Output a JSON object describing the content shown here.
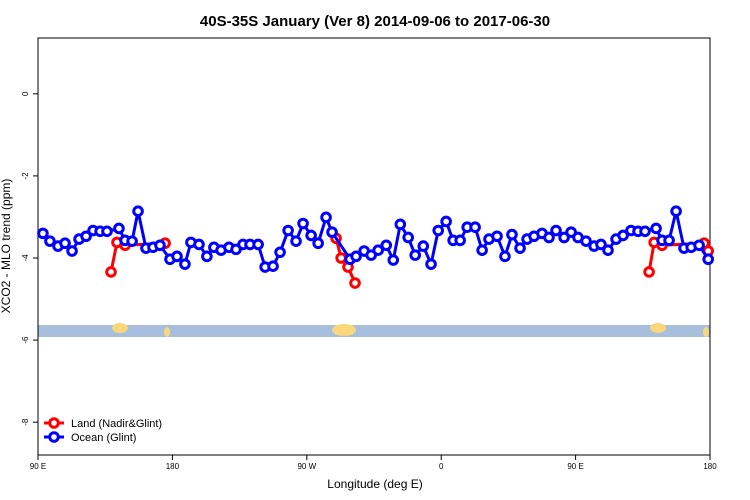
{
  "chart_data": {
    "type": "line",
    "title": "40S-35S January (Ver 8)   2014-09-06 to 2017-06-30",
    "x_label": "Longitude (deg E)",
    "y_label": "XCO2 - MLO trend (ppm)",
    "xlim": [
      90,
      540
    ],
    "xticks": [
      {
        "value": 90,
        "label": "90 E"
      },
      {
        "value": 180,
        "label": "180"
      },
      {
        "value": 270,
        "label": "90 W"
      },
      {
        "value": 360,
        "label": "0"
      },
      {
        "value": 450,
        "label": "90 E"
      },
      {
        "value": 540,
        "label": "180"
      }
    ],
    "ylim": [
      -8.8,
      1.36
    ],
    "yticks": [
      0,
      -2,
      -4,
      -6,
      -8
    ],
    "legend": "bottom-left",
    "series": [
      {
        "name": "Land (Nadir&Glint)",
        "color": "#ff0000",
        "x": [
          138.9,
          142.9,
          148.3,
          175.1,
          289.6,
          293,
          297.6,
          302.3,
          499.2,
          502.6,
          507.9,
          536.1,
          538.8
        ],
        "values": [
          -4.34,
          -3.62,
          -3.69,
          -3.64,
          -3.52,
          -4.0,
          -4.22,
          -4.61,
          -4.34,
          -3.62,
          -3.69,
          -3.64,
          -3.83
        ]
      },
      {
        "name": "Ocean (Glint)",
        "color": "#0000ff",
        "x": [
          93.3,
          98,
          103.4,
          108.1,
          112.8,
          117.5,
          122.2,
          126.9,
          131.6,
          136.2,
          144.2,
          148.3,
          153,
          157,
          162.3,
          167,
          171.7,
          178.4,
          183.1,
          188.4,
          192.4,
          197.8,
          203.1,
          207.8,
          212.6,
          217.9,
          222.6,
          227.3,
          232,
          237.4,
          242.1,
          247.4,
          252.1,
          257.5,
          262.8,
          267.5,
          272.9,
          277.6,
          282.9,
          286.9,
          299,
          303,
          308.4,
          313.1,
          317.8,
          323.2,
          327.9,
          332.6,
          337.9,
          342.6,
          348,
          353.2,
          358,
          363.3,
          368,
          372.7,
          377.4,
          382.7,
          387.4,
          392,
          397.4,
          402.7,
          407.4,
          412.8,
          417.5,
          422.2,
          427.5,
          432.2,
          436.9,
          442.3,
          447,
          451.6,
          457,
          462.4,
          467,
          471.7,
          477.1,
          481.8,
          487.1,
          491.8,
          496.5,
          503.9,
          507.9,
          512.6,
          517.3,
          522.6,
          527.4,
          532.7,
          538.8
        ],
        "values": [
          -3.4,
          -3.59,
          -3.71,
          -3.64,
          -3.83,
          -3.54,
          -3.47,
          -3.33,
          -3.35,
          -3.35,
          -3.28,
          -3.57,
          -3.59,
          -2.86,
          -3.76,
          -3.74,
          -3.69,
          -4.03,
          -3.96,
          -4.15,
          -3.62,
          -3.67,
          -3.96,
          -3.74,
          -3.81,
          -3.74,
          -3.79,
          -3.67,
          -3.67,
          -3.67,
          -4.22,
          -4.2,
          -3.86,
          -3.33,
          -3.59,
          -3.16,
          -3.45,
          -3.64,
          -3.01,
          -3.37,
          -4.03,
          -3.96,
          -3.83,
          -3.93,
          -3.81,
          -3.69,
          -4.05,
          -3.18,
          -3.5,
          -3.93,
          -3.71,
          -4.15,
          -3.33,
          -3.11,
          -3.57,
          -3.57,
          -3.25,
          -3.25,
          -3.81,
          -3.54,
          -3.47,
          -3.96,
          -3.43,
          -3.76,
          -3.54,
          -3.47,
          -3.4,
          -3.5,
          -3.33,
          -3.5,
          -3.37,
          -3.5,
          -3.59,
          -3.71,
          -3.67,
          -3.81,
          -3.54,
          -3.45,
          -3.33,
          -3.35,
          -3.35,
          -3.28,
          -3.57,
          -3.57,
          -2.86,
          -3.76,
          -3.74,
          -3.69,
          -4.03
        ]
      }
    ]
  }
}
